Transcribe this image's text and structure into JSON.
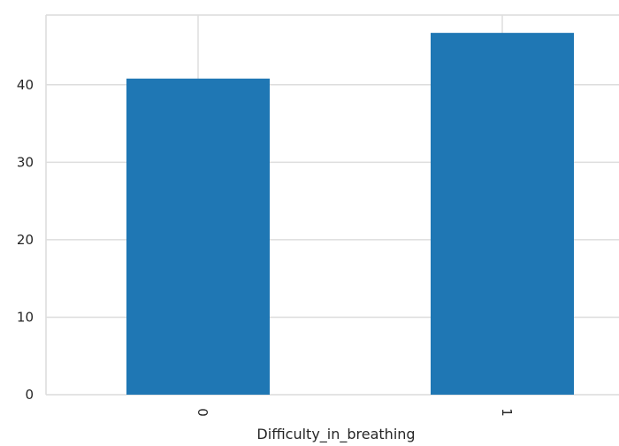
{
  "chart_data": {
    "type": "bar",
    "title": "",
    "xlabel": "Difficulty_in_breathing",
    "ylabel": "",
    "categories": [
      "0",
      "1"
    ],
    "values": [
      40.8,
      46.7
    ],
    "ylim": [
      0,
      49
    ],
    "yticks": [
      0,
      10,
      20,
      30,
      40
    ],
    "grid": true,
    "bar_color": "#1f77b4",
    "grid_color": "#dddddd",
    "axis_color": "#dcdcdc"
  }
}
